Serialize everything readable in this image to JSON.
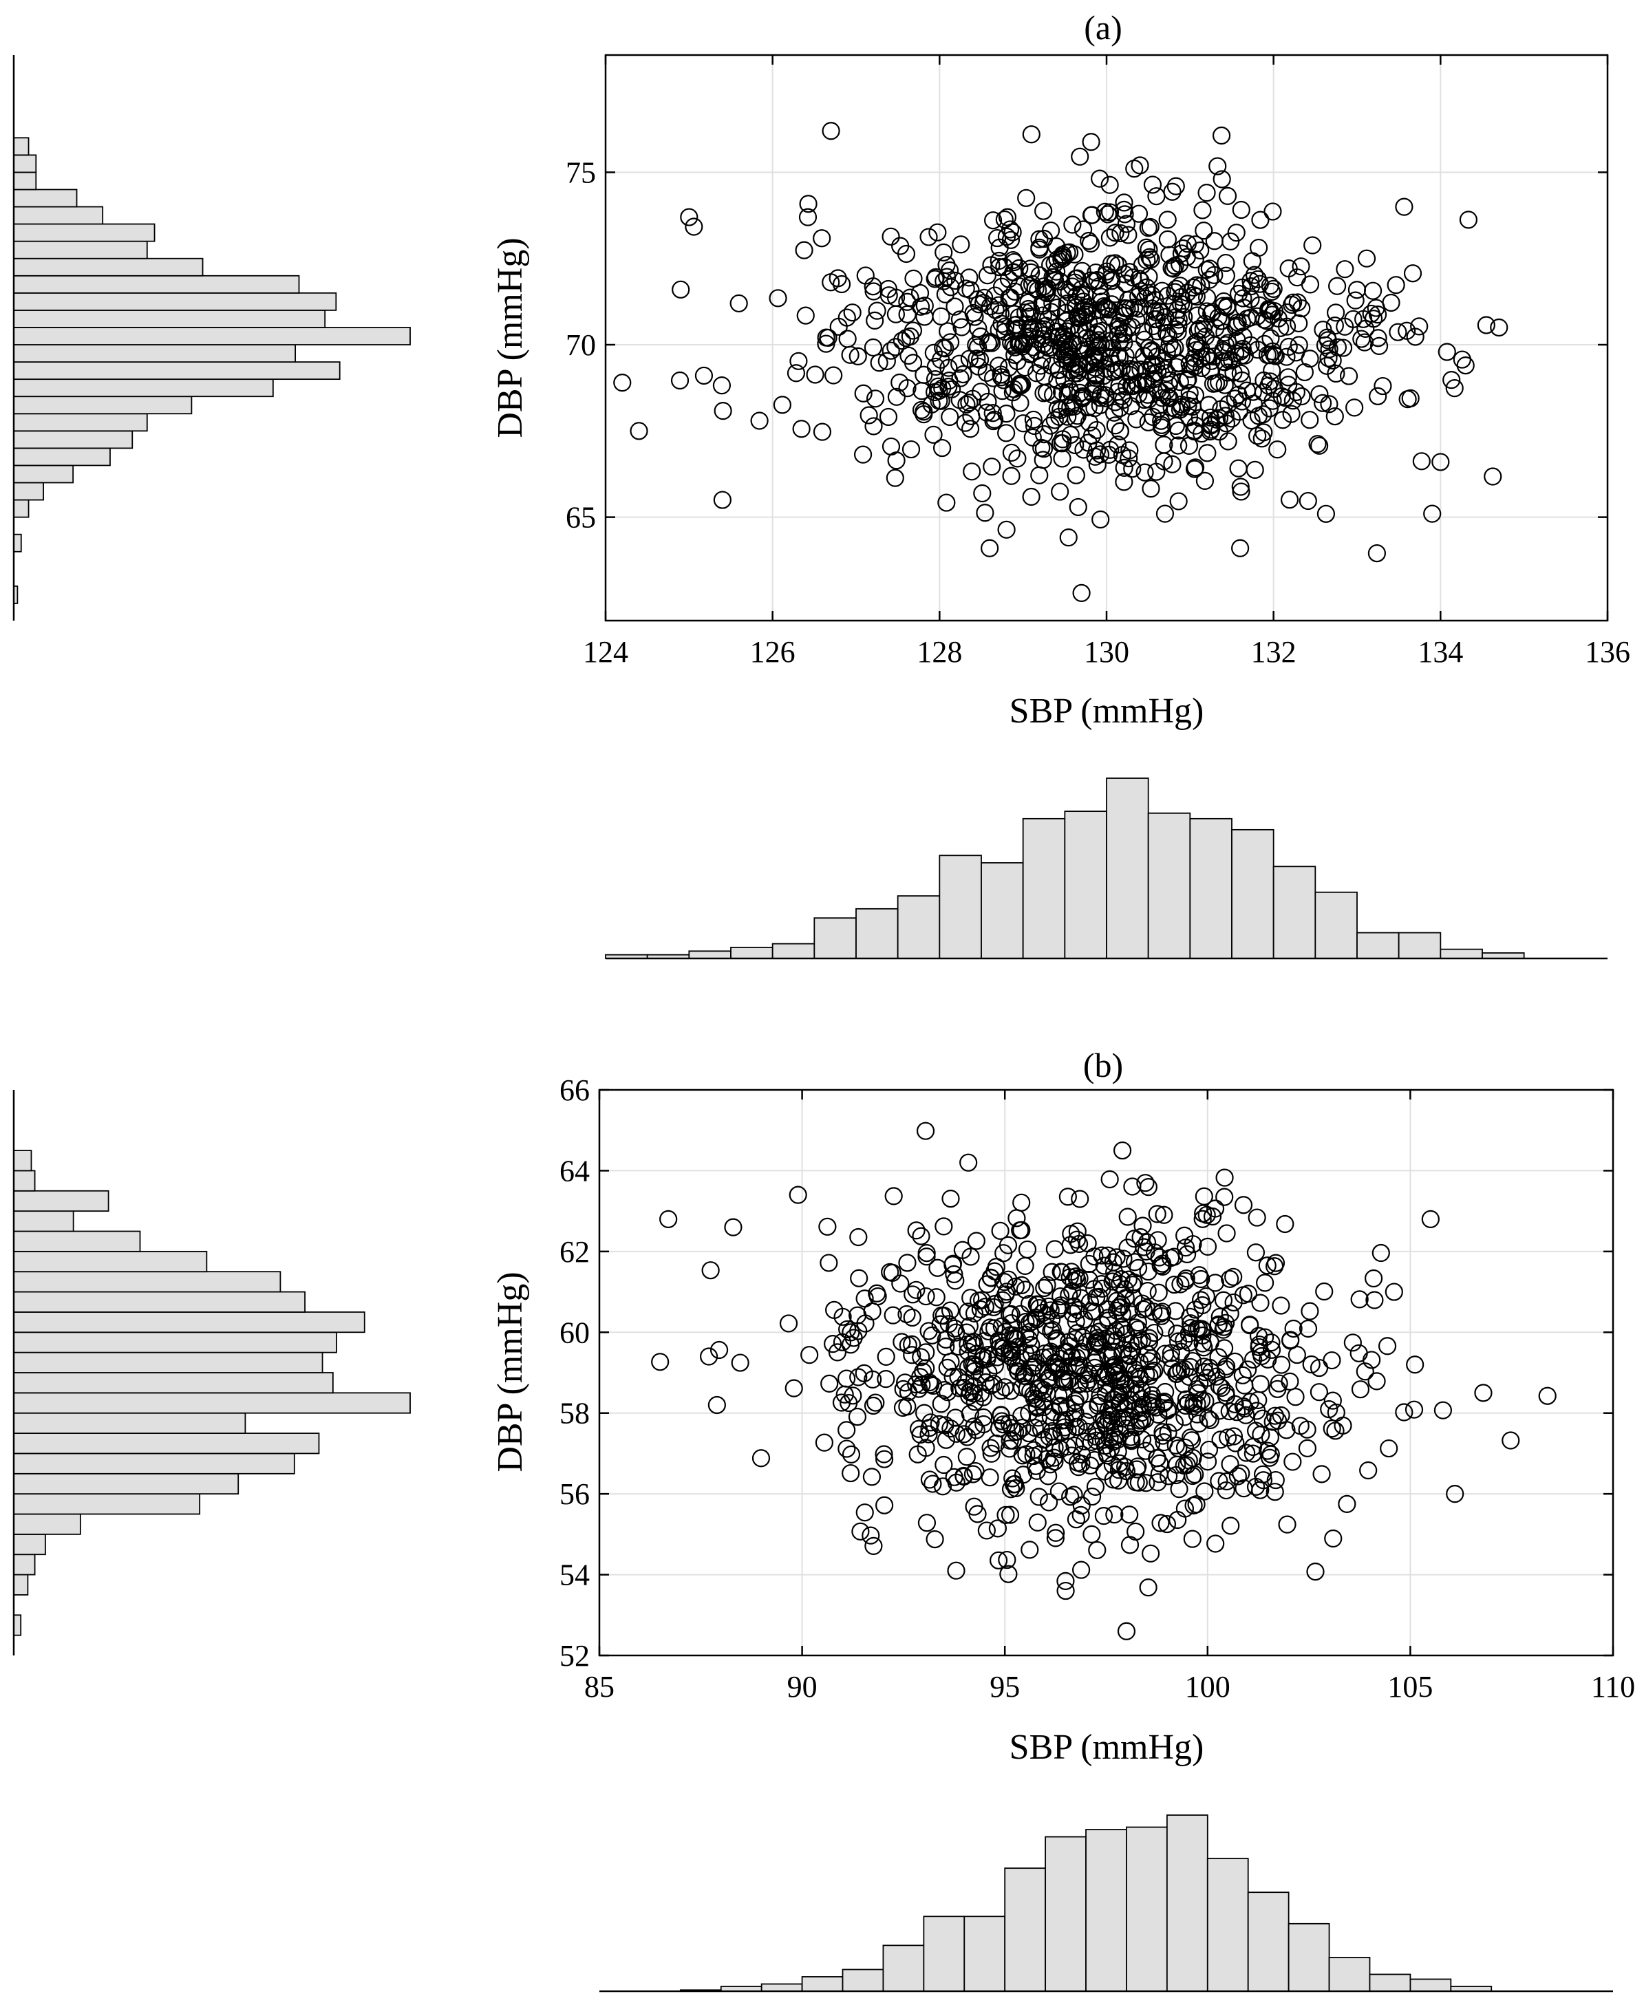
{
  "figure": {
    "subplot_labels": [
      "(a)",
      "(b)"
    ]
  },
  "chart_data": [
    {
      "id": "a",
      "type": "scatter",
      "title": "(a)",
      "xlabel": "SBP (mmHg)",
      "ylabel": "DBP (mmHg)",
      "xlim": [
        124,
        136
      ],
      "ylim": [
        62,
        78.4
      ],
      "xticks": [
        124,
        126,
        128,
        130,
        132,
        134,
        136
      ],
      "xtick_labels": [
        "124",
        "126",
        "128",
        "130",
        "132",
        "134",
        "136"
      ],
      "yticks": [
        65,
        70,
        75
      ],
      "ytick_labels": [
        "65",
        "70",
        "75"
      ],
      "grid": true,
      "marker": "open-circle",
      "n_points": 1000,
      "x_mean": 130,
      "x_std": 1.6,
      "y_mean": 70,
      "y_std": 2,
      "sample_points": [
        [
          124.2,
          68.9
        ],
        [
          124.4,
          67.5
        ],
        [
          124.9,
          71.6
        ],
        [
          125.0,
          73.7
        ],
        [
          125.4,
          65.5
        ],
        [
          126.7,
          76.2
        ],
        [
          129.1,
          76.1
        ],
        [
          129.7,
          62.8
        ],
        [
          128.6,
          64.1
        ],
        [
          131.6,
          64.1
        ],
        [
          130.7,
          65.1
        ],
        [
          133.9,
          65.1
        ],
        [
          134.0,
          66.6
        ],
        [
          134.7,
          70.5
        ],
        [
          134.3,
          69.4
        ],
        [
          130.4,
          75.2
        ]
      ],
      "x_histogram": {
        "bin_edges": [
          124.0,
          124.5,
          125.0,
          125.5,
          126.0,
          126.5,
          127.0,
          127.5,
          128.0,
          128.5,
          129.0,
          129.5,
          130.0,
          130.5,
          131.0,
          131.5,
          132.0,
          132.5,
          133.0,
          133.5,
          134.0,
          134.5,
          135.0
        ],
        "counts": [
          2,
          2,
          4,
          6,
          8,
          22,
          27,
          34,
          56,
          52,
          76,
          80,
          98,
          79,
          76,
          70,
          50,
          36,
          14,
          14,
          5,
          3,
          1
        ]
      },
      "y_histogram": {
        "bin_edges": [
          62.5,
          63.0,
          63.5,
          64.0,
          64.5,
          65.0,
          65.5,
          66.0,
          66.5,
          67.0,
          67.5,
          68.0,
          68.5,
          69.0,
          69.5,
          70.0,
          70.5,
          71.0,
          71.5,
          72.0,
          72.5,
          73.0,
          73.5,
          74.0,
          74.5,
          75.0,
          75.5,
          76.0,
          76.5
        ],
        "counts": [
          1,
          0,
          0,
          2,
          0,
          4,
          8,
          16,
          26,
          32,
          36,
          48,
          70,
          88,
          76,
          107,
          84,
          87,
          77,
          51,
          36,
          38,
          24,
          17,
          6,
          6,
          4,
          0,
          2
        ]
      }
    },
    {
      "id": "b",
      "type": "scatter",
      "title": "(b)",
      "xlabel": "SBP (mmHg)",
      "ylabel": "DBP (mmHg)",
      "xlim": [
        85,
        110
      ],
      "ylim": [
        52,
        66
      ],
      "xticks": [
        85,
        90,
        95,
        100,
        105,
        110
      ],
      "xtick_labels": [
        "85",
        "90",
        "95",
        "100",
        "105",
        "110"
      ],
      "yticks": [
        52,
        54,
        56,
        58,
        60,
        62,
        64,
        66
      ],
      "ytick_labels": [
        "52",
        "54",
        "56",
        "58",
        "60",
        "62",
        "64",
        "66"
      ],
      "grid": true,
      "marker": "open-circle",
      "n_points": 1000,
      "x_mean": 97,
      "x_std": 3,
      "y_mean": 59,
      "y_std": 2,
      "sample_points": [
        [
          86.7,
          62.8
        ],
        [
          88.3,
          62.6
        ],
        [
          87.9,
          58.2
        ],
        [
          87.7,
          59.4
        ],
        [
          97.9,
          64.5
        ],
        [
          94.1,
          64.2
        ],
        [
          98.0,
          52.6
        ],
        [
          96.5,
          53.6
        ],
        [
          93.8,
          54.1
        ],
        [
          105.5,
          62.8
        ],
        [
          106.8,
          58.5
        ],
        [
          106.1,
          56.0
        ],
        [
          104.6,
          61.0
        ],
        [
          89.9,
          63.4
        ]
      ],
      "x_histogram": {
        "bin_edges": [
          85,
          86,
          87,
          88,
          89,
          90,
          91,
          92,
          93,
          94,
          95,
          96,
          97,
          98,
          99,
          100,
          101,
          102,
          103,
          104,
          105,
          106,
          107
        ],
        "counts": [
          0,
          0,
          1,
          4,
          6,
          12,
          18,
          38,
          62,
          62,
          102,
          128,
          134,
          136,
          146,
          110,
          82,
          56,
          28,
          14,
          10,
          4,
          2
        ]
      },
      "y_histogram": {
        "bin_edges": [
          52.5,
          53.0,
          53.5,
          54.0,
          54.5,
          55.0,
          55.5,
          56.0,
          56.5,
          57.0,
          57.5,
          58.0,
          58.5,
          59.0,
          59.5,
          60.0,
          60.5,
          61.0,
          61.5,
          62.0,
          62.5,
          63.0,
          63.5,
          64.0,
          64.5
        ],
        "counts": [
          2,
          0,
          4,
          6,
          9,
          19,
          53,
          64,
          80,
          87,
          66,
          113,
          91,
          88,
          92,
          100,
          83,
          76,
          55,
          36,
          17,
          27,
          6,
          5,
          2
        ]
      }
    }
  ]
}
